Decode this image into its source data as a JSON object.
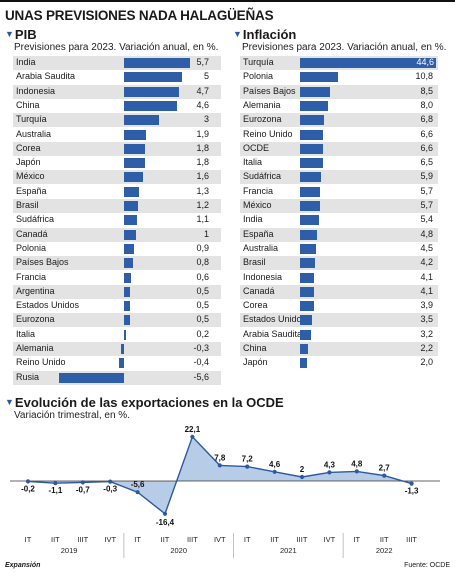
{
  "title": "UNAS PREVISIONES NADA HALAGÜEÑAS",
  "colors": {
    "bar": "#2e5ea8",
    "shade": "#e3e3e3",
    "area": "#b7cce6",
    "line": "#2c5aa0"
  },
  "footer": {
    "source": "Fuente: OCDE",
    "publisher": "Expansión"
  },
  "chart_data": [
    {
      "type": "bar",
      "title": "PIB",
      "subtitle": "Previsiones para 2023. Variación anual, en %.",
      "categories": [
        "India",
        "Arabia Saudita",
        "Indonesia",
        "China",
        "Turquía",
        "Australia",
        "Corea",
        "Japón",
        "México",
        "España",
        "Brasil",
        "Sudáfrica",
        "Canadá",
        "Polonia",
        "Países Bajos",
        "Francia",
        "Argentina",
        "Estados Unidos",
        "Eurozona",
        "Italia",
        "Alemania",
        "Reino Unido",
        "Rusia"
      ],
      "values": [
        5.7,
        5,
        4.7,
        4.6,
        3,
        1.9,
        1.8,
        1.8,
        1.6,
        1.3,
        1.2,
        1.1,
        1,
        0.9,
        0.8,
        0.6,
        0.5,
        0.5,
        0.5,
        0.2,
        -0.3,
        -0.4,
        -5.6
      ],
      "labels": [
        "5,7",
        "5",
        "4,7",
        "4,6",
        "3",
        "1,9",
        "1,8",
        "1,8",
        "1,6",
        "1,3",
        "1,2",
        "1,1",
        "1",
        "0,9",
        "0,8",
        "0,6",
        "0,5",
        "0,5",
        "0,5",
        "0,2",
        "-0,3",
        "-0,4",
        "-5,6"
      ]
    },
    {
      "type": "bar",
      "title": "Inflación",
      "subtitle": "Previsiones para 2023. Variación anual, en %.",
      "categories": [
        "Turquía",
        "Polonia",
        "Países Bajos",
        "Alemania",
        "Eurozona",
        "Reino Unido",
        "OCDE",
        "Italia",
        "Sudáfrica",
        "Francia",
        "México",
        "India",
        "España",
        "Australia",
        "Brasil",
        "Indonesia",
        "Canadá",
        "Corea",
        "Estados Unidos",
        "Arabia Saudita",
        "China",
        "Japón"
      ],
      "values": [
        44.6,
        10.8,
        8.5,
        8.0,
        6.8,
        6.6,
        6.6,
        6.5,
        5.9,
        5.7,
        5.7,
        5.4,
        4.8,
        4.5,
        4.2,
        4.1,
        4.1,
        3.9,
        3.5,
        3.2,
        2.2,
        2.0
      ],
      "labels": [
        "44,6",
        "10,8",
        "8,5",
        "8,0",
        "6,8",
        "6,6",
        "6,6",
        "6,5",
        "5,9",
        "5,7",
        "5,7",
        "5,4",
        "4,8",
        "4,5",
        "4,2",
        "4,1",
        "4,1",
        "3,9",
        "3,5",
        "3,2",
        "2,2",
        "2,0"
      ]
    },
    {
      "type": "area",
      "title": "Evolución de las exportaciones en la OCDE",
      "subtitle": "Variación trimestral, en %.",
      "x": [
        "IT",
        "IIT",
        "IIIT",
        "IVT",
        "IT",
        "IIT",
        "IIIT",
        "IVT",
        "IT",
        "IIT",
        "IIIT",
        "IVT",
        "IT",
        "IIT",
        "IIIT"
      ],
      "years": [
        {
          "label": "2019",
          "span": 4
        },
        {
          "label": "2020",
          "span": 4
        },
        {
          "label": "2021",
          "span": 4
        },
        {
          "label": "2022",
          "span": 3
        }
      ],
      "values": [
        -0.2,
        -1.1,
        -0.7,
        -0.3,
        -5.6,
        -16.4,
        22.1,
        7.8,
        7.2,
        4.6,
        2,
        4.3,
        4.8,
        2.7,
        -1.3
      ],
      "labels": [
        "-0,2",
        "-1,1",
        "-0,7",
        "-0,3",
        "-5,6",
        "-16,4",
        "22,1",
        "7,8",
        "7,2",
        "4,6",
        "2",
        "4,3",
        "4,8",
        "2,7",
        "-1,3"
      ]
    }
  ]
}
